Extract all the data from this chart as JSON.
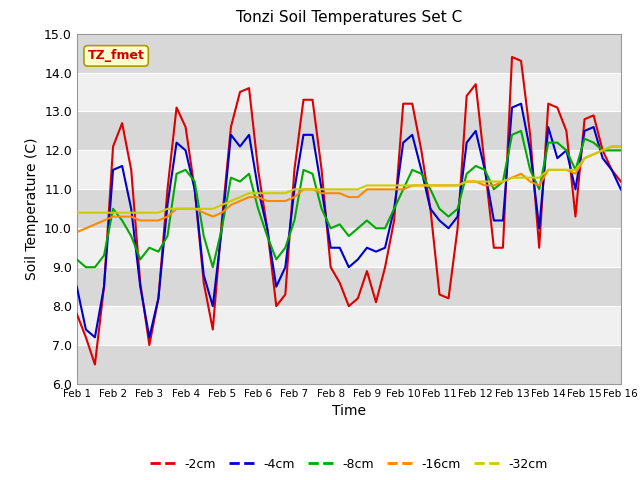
{
  "title": "Tonzi Soil Temperatures Set C",
  "xlabel": "Time",
  "ylabel": "Soil Temperature (C)",
  "ylim": [
    6.0,
    15.0
  ],
  "yticks": [
    6.0,
    7.0,
    8.0,
    9.0,
    10.0,
    11.0,
    12.0,
    13.0,
    14.0,
    15.0
  ],
  "xtick_labels": [
    "Feb 1",
    "Feb 2",
    "Feb 3",
    "Feb 4",
    "Feb 5",
    "Feb 6",
    "Feb 7",
    "Feb 8",
    "Feb 9",
    "Feb 10",
    "Feb 11",
    "Feb 12",
    "Feb 13",
    "Feb 14",
    "Feb 15",
    "Feb 16"
  ],
  "annotation_text": "TZ_fmet",
  "annotation_color": "#cc0000",
  "annotation_bg": "#ffffcc",
  "annotation_border": "#aa9900",
  "series_colors": [
    "#dd0000",
    "#0000cc",
    "#00aa00",
    "#ff8800",
    "#cccc00"
  ],
  "series_labels": [
    "-2cm",
    "-4cm",
    "-8cm",
    "-16cm",
    "-32cm"
  ],
  "fig_bg_color": "#ffffff",
  "plot_bg_color": "#e8e8e8",
  "band_light": "#f0f0f0",
  "band_dark": "#d8d8d8",
  "grid_color": "#ffffff",
  "line_width": 1.5,
  "x_2cm": [
    1,
    1.25,
    1.5,
    1.75,
    2,
    2.25,
    2.5,
    2.75,
    3,
    3.25,
    3.5,
    3.75,
    4,
    4.25,
    4.5,
    4.75,
    5,
    5.25,
    5.5,
    5.75,
    6,
    6.25,
    6.5,
    6.75,
    7,
    7.25,
    7.5,
    7.75,
    8,
    8.25,
    8.5,
    8.75,
    9,
    9.25,
    9.5,
    9.75,
    10,
    10.25,
    10.5,
    10.75,
    11,
    11.25,
    11.5,
    11.75,
    12,
    12.25,
    12.5,
    12.75,
    13,
    13.25,
    13.5,
    13.75,
    14,
    14.25,
    14.5,
    14.75,
    15,
    15.25,
    15.5,
    15.75,
    16
  ],
  "y_2cm": [
    7.8,
    7.2,
    6.5,
    8.5,
    12.1,
    12.7,
    11.5,
    8.6,
    7.0,
    8.2,
    11.0,
    13.1,
    12.6,
    11.0,
    8.6,
    7.4,
    10.2,
    12.6,
    13.5,
    13.6,
    11.5,
    10.0,
    8.0,
    8.3,
    11.5,
    13.3,
    13.3,
    11.5,
    9.0,
    8.6,
    8.0,
    8.2,
    8.9,
    8.1,
    9.0,
    10.2,
    13.2,
    13.2,
    12.0,
    10.5,
    8.3,
    8.2,
    10.0,
    13.4,
    13.7,
    11.6,
    9.5,
    9.5,
    14.4,
    14.3,
    12.4,
    9.5,
    13.2,
    13.1,
    12.5,
    10.3,
    12.8,
    12.9,
    12.0,
    11.5,
    11.2
  ],
  "x_4cm": [
    1,
    1.25,
    1.5,
    1.75,
    2,
    2.25,
    2.5,
    2.75,
    3,
    3.25,
    3.5,
    3.75,
    4,
    4.25,
    4.5,
    4.75,
    5,
    5.25,
    5.5,
    5.75,
    6,
    6.25,
    6.5,
    6.75,
    7,
    7.25,
    7.5,
    7.75,
    8,
    8.25,
    8.5,
    8.75,
    9,
    9.25,
    9.5,
    9.75,
    10,
    10.25,
    10.5,
    10.75,
    11,
    11.25,
    11.5,
    11.75,
    12,
    12.25,
    12.5,
    12.75,
    13,
    13.25,
    13.5,
    13.75,
    14,
    14.25,
    14.5,
    14.75,
    15,
    15.25,
    15.5,
    15.75,
    16
  ],
  "y_4cm": [
    8.5,
    7.4,
    7.2,
    8.5,
    11.5,
    11.6,
    10.5,
    8.5,
    7.2,
    8.2,
    10.6,
    12.2,
    12.0,
    11.0,
    8.8,
    8.0,
    10.0,
    12.4,
    12.1,
    12.4,
    11.0,
    10.0,
    8.5,
    9.0,
    11.0,
    12.4,
    12.4,
    11.0,
    9.5,
    9.5,
    9.0,
    9.2,
    9.5,
    9.4,
    9.5,
    10.5,
    12.2,
    12.4,
    11.5,
    10.5,
    10.2,
    10.0,
    10.3,
    12.2,
    12.5,
    11.5,
    10.2,
    10.2,
    13.1,
    13.2,
    12.0,
    10.0,
    12.6,
    11.8,
    12.0,
    11.0,
    12.5,
    12.6,
    11.8,
    11.5,
    11.0
  ],
  "x_8cm": [
    1,
    1.25,
    1.5,
    1.75,
    2,
    2.25,
    2.5,
    2.75,
    3,
    3.25,
    3.5,
    3.75,
    4,
    4.25,
    4.5,
    4.75,
    5,
    5.25,
    5.5,
    5.75,
    6,
    6.25,
    6.5,
    6.75,
    7,
    7.25,
    7.5,
    7.75,
    8,
    8.25,
    8.5,
    8.75,
    9,
    9.25,
    9.5,
    9.75,
    10,
    10.25,
    10.5,
    10.75,
    11,
    11.25,
    11.5,
    11.75,
    12,
    12.25,
    12.5,
    12.75,
    13,
    13.25,
    13.5,
    13.75,
    14,
    14.25,
    14.5,
    14.75,
    15,
    15.25,
    15.5,
    15.75,
    16
  ],
  "y_8cm": [
    9.2,
    9.0,
    9.0,
    9.3,
    10.5,
    10.2,
    9.8,
    9.2,
    9.5,
    9.4,
    9.8,
    11.4,
    11.5,
    11.2,
    9.8,
    9.0,
    10.0,
    11.3,
    11.2,
    11.4,
    10.5,
    9.8,
    9.2,
    9.5,
    10.2,
    11.5,
    11.4,
    10.5,
    10.0,
    10.1,
    9.8,
    10.0,
    10.2,
    10.0,
    10.0,
    10.5,
    11.0,
    11.5,
    11.4,
    11.0,
    10.5,
    10.3,
    10.5,
    11.4,
    11.6,
    11.5,
    11.0,
    11.2,
    12.4,
    12.5,
    11.5,
    11.0,
    12.2,
    12.2,
    12.0,
    11.5,
    12.3,
    12.2,
    12.0,
    12.0,
    12.0
  ],
  "x_16cm": [
    1,
    1.25,
    1.5,
    1.75,
    2,
    2.25,
    2.5,
    2.75,
    3,
    3.25,
    3.5,
    3.75,
    4,
    4.25,
    4.5,
    4.75,
    5,
    5.25,
    5.5,
    5.75,
    6,
    6.25,
    6.5,
    6.75,
    7,
    7.25,
    7.5,
    7.75,
    8,
    8.25,
    8.5,
    8.75,
    9,
    9.25,
    9.5,
    9.75,
    10,
    10.25,
    10.5,
    10.75,
    11,
    11.25,
    11.5,
    11.75,
    12,
    12.25,
    12.5,
    12.75,
    13,
    13.25,
    13.5,
    13.75,
    14,
    14.25,
    14.5,
    14.75,
    15,
    15.25,
    15.5,
    15.75,
    16
  ],
  "y_16cm": [
    9.9,
    10.0,
    10.1,
    10.2,
    10.3,
    10.3,
    10.3,
    10.2,
    10.2,
    10.2,
    10.3,
    10.5,
    10.5,
    10.5,
    10.4,
    10.3,
    10.4,
    10.6,
    10.7,
    10.8,
    10.8,
    10.7,
    10.7,
    10.7,
    10.8,
    11.0,
    11.0,
    10.9,
    10.9,
    10.9,
    10.8,
    10.8,
    11.0,
    11.0,
    11.0,
    11.0,
    11.0,
    11.1,
    11.1,
    11.1,
    11.1,
    11.1,
    11.1,
    11.2,
    11.2,
    11.1,
    11.1,
    11.2,
    11.3,
    11.4,
    11.2,
    11.1,
    11.5,
    11.5,
    11.5,
    11.4,
    11.8,
    11.9,
    12.0,
    12.1,
    12.1
  ],
  "x_32cm": [
    1,
    1.25,
    1.5,
    1.75,
    2,
    2.25,
    2.5,
    2.75,
    3,
    3.25,
    3.5,
    3.75,
    4,
    4.25,
    4.5,
    4.75,
    5,
    5.25,
    5.5,
    5.75,
    6,
    6.25,
    6.5,
    6.75,
    7,
    7.25,
    7.5,
    7.75,
    8,
    8.25,
    8.5,
    8.75,
    9,
    9.25,
    9.5,
    9.75,
    10,
    10.25,
    10.5,
    10.75,
    11,
    11.25,
    11.5,
    11.75,
    12,
    12.25,
    12.5,
    12.75,
    13,
    13.25,
    13.5,
    13.75,
    14,
    14.25,
    14.5,
    14.75,
    15,
    15.25,
    15.5,
    15.75,
    16
  ],
  "y_32cm": [
    10.4,
    10.4,
    10.4,
    10.4,
    10.4,
    10.4,
    10.4,
    10.4,
    10.4,
    10.4,
    10.5,
    10.5,
    10.5,
    10.5,
    10.5,
    10.5,
    10.6,
    10.7,
    10.8,
    10.9,
    10.9,
    10.9,
    10.9,
    10.9,
    11.0,
    11.0,
    11.0,
    11.0,
    11.0,
    11.0,
    11.0,
    11.0,
    11.1,
    11.1,
    11.1,
    11.1,
    11.1,
    11.1,
    11.1,
    11.1,
    11.1,
    11.1,
    11.1,
    11.2,
    11.2,
    11.2,
    11.2,
    11.2,
    11.3,
    11.3,
    11.3,
    11.3,
    11.5,
    11.5,
    11.5,
    11.5,
    11.8,
    11.9,
    12.0,
    12.1,
    12.1
  ]
}
